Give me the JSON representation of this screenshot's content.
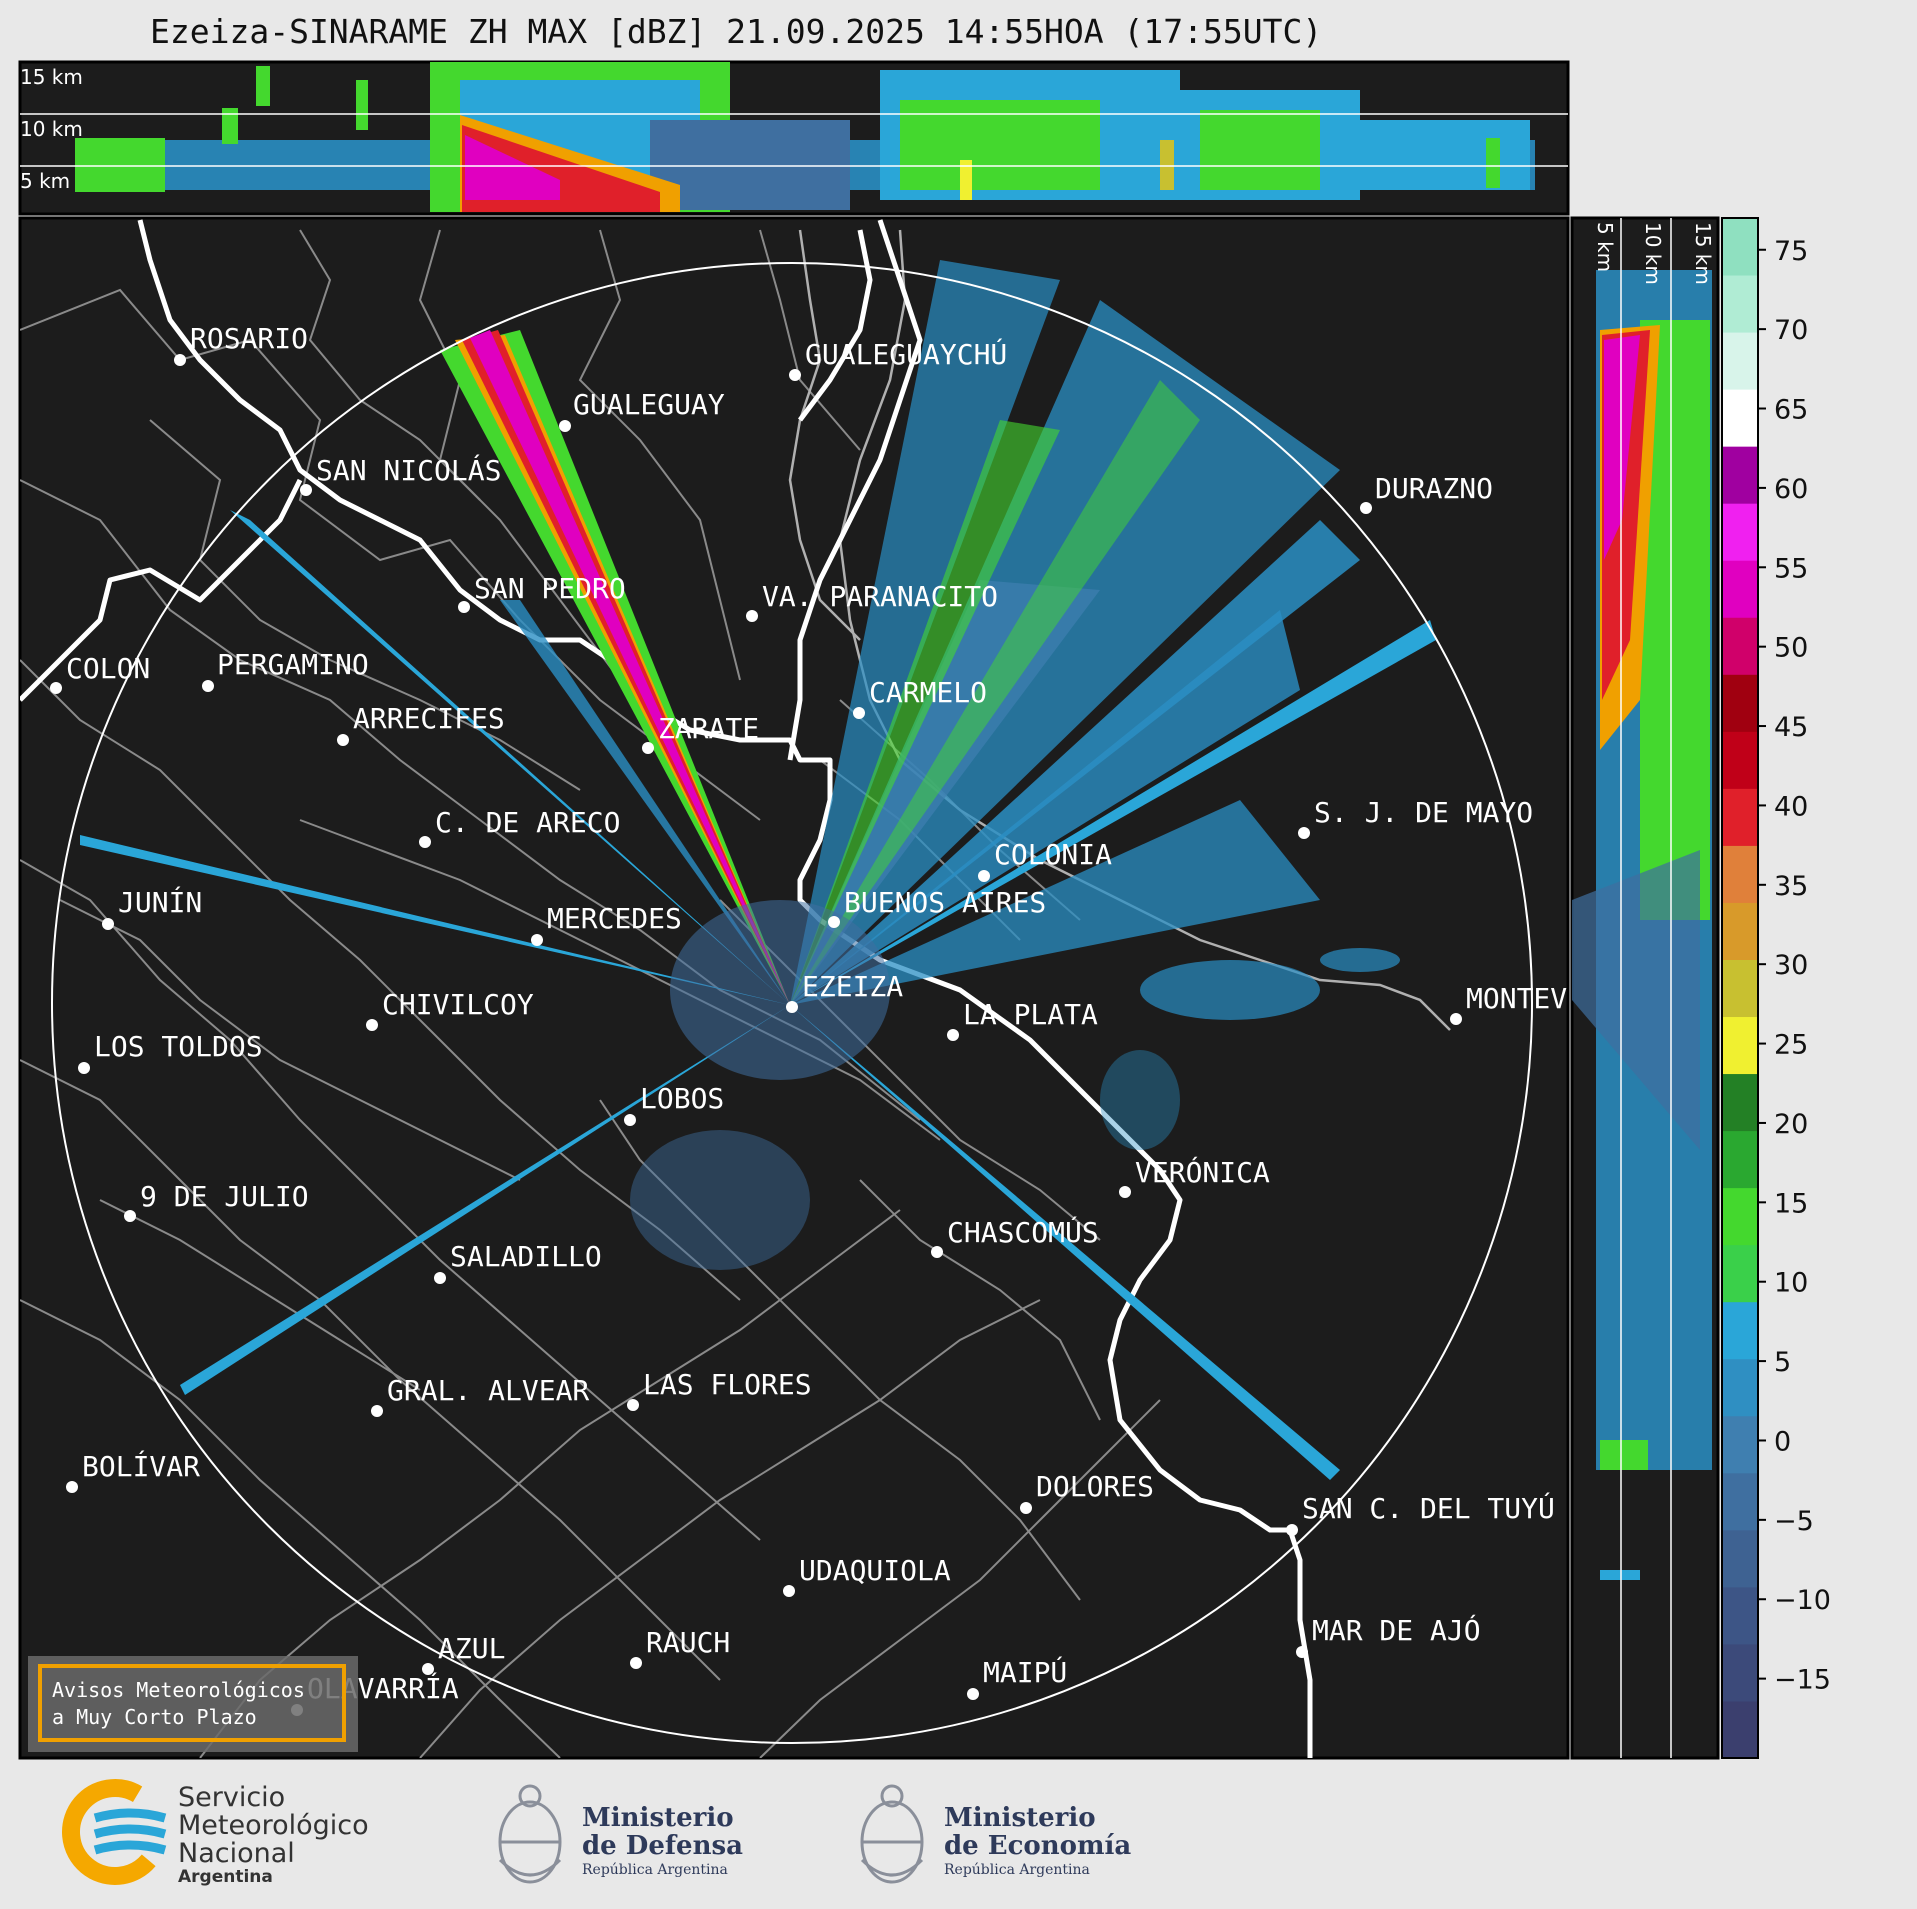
{
  "title": "Ezeiza-SINARAME ZH MAX [dBZ] 21.09.2025 14:55HOA (17:55UTC)",
  "profile_top": {
    "height_labels": [
      "15 km",
      "10 km",
      "5 km"
    ]
  },
  "profile_right": {
    "height_labels": [
      "5 km",
      "10 km",
      "15 km"
    ]
  },
  "colorbar": {
    "ticks": [
      "75",
      "70",
      "65",
      "60",
      "55",
      "50",
      "45",
      "40",
      "35",
      "30",
      "25",
      "20",
      "15",
      "10",
      "5",
      "0",
      "−5",
      "−10",
      "−15"
    ],
    "colors": [
      "#3b3f6e",
      "#3c4a7a",
      "#3d5586",
      "#3e6292",
      "#3f6fa0",
      "#3f7fb0",
      "#2f8fc2",
      "#2aa6d8",
      "#3ad04a",
      "#44d82e",
      "#2aa830",
      "#238025",
      "#f0f030",
      "#c8c030",
      "#d89a2a",
      "#e0803a",
      "#e0202a",
      "#c00018",
      "#a00010",
      "#d0006a",
      "#e000c0",
      "#f020f0",
      "#a000a0",
      "#ffffff",
      "#d8f4ea",
      "#b0ecd4",
      "#8fe0c0"
    ]
  },
  "radar": {
    "name": "EZEIZA",
    "range_circle": "240 km"
  },
  "cities": [
    {
      "name": "ROSARIO"
    },
    {
      "name": "GUALEGUAYCHÚ"
    },
    {
      "name": "GUALEGUAY"
    },
    {
      "name": "SAN NICOLÁS"
    },
    {
      "name": "DURAZNO"
    },
    {
      "name": "SAN PEDRO"
    },
    {
      "name": "VA. PARANACITO"
    },
    {
      "name": "COLON"
    },
    {
      "name": "PERGAMINO"
    },
    {
      "name": "CARMELO"
    },
    {
      "name": "ARRECIFES"
    },
    {
      "name": "ZARATE"
    },
    {
      "name": "S. J. DE MAYO"
    },
    {
      "name": "C. DE ARECO"
    },
    {
      "name": "COLONIA"
    },
    {
      "name": "JUNÍN"
    },
    {
      "name": "BUENOS AIRES"
    },
    {
      "name": "MERCEDES"
    },
    {
      "name": "EZEIZA"
    },
    {
      "name": "MONTEV"
    },
    {
      "name": "CHIVILCOY"
    },
    {
      "name": "LA PLATA"
    },
    {
      "name": "LOS TOLDOS"
    },
    {
      "name": "LOBOS"
    },
    {
      "name": "VERÓNICA"
    },
    {
      "name": "9 DE JULIO"
    },
    {
      "name": "CHASCOMÚS"
    },
    {
      "name": "SALADILLO"
    },
    {
      "name": "GRAL. ALVEAR"
    },
    {
      "name": "LAS FLORES"
    },
    {
      "name": "BOLÍVAR"
    },
    {
      "name": "DOLORES"
    },
    {
      "name": "SAN C. DEL TUYÚ"
    },
    {
      "name": "UDAQUIOLA"
    },
    {
      "name": "MAR DE AJÓ"
    },
    {
      "name": "AZUL"
    },
    {
      "name": "RAUCH"
    },
    {
      "name": "MAIPÚ"
    },
    {
      "name": "OLAVARRÍA"
    }
  ],
  "warning_box": {
    "line1": "Avisos Meteorológicos",
    "line2": "a Muy Corto Plazo"
  },
  "logos": {
    "smn": {
      "line1": "Servicio",
      "line2": "Meteorológico",
      "line3": "Nacional",
      "line4": "Argentina"
    },
    "defensa": {
      "line1": "Ministerio",
      "line2": "de Defensa",
      "line3": "República Argentina"
    },
    "economia": {
      "line1": "Ministerio",
      "line2": "de Economía",
      "line3": "República Argentina"
    }
  },
  "colors": {
    "background": "#e8e8e8",
    "map": "#1c1c1c",
    "coast": "#ffffff",
    "borders": "#8a8a8a",
    "warning_border": "#f0a000"
  }
}
